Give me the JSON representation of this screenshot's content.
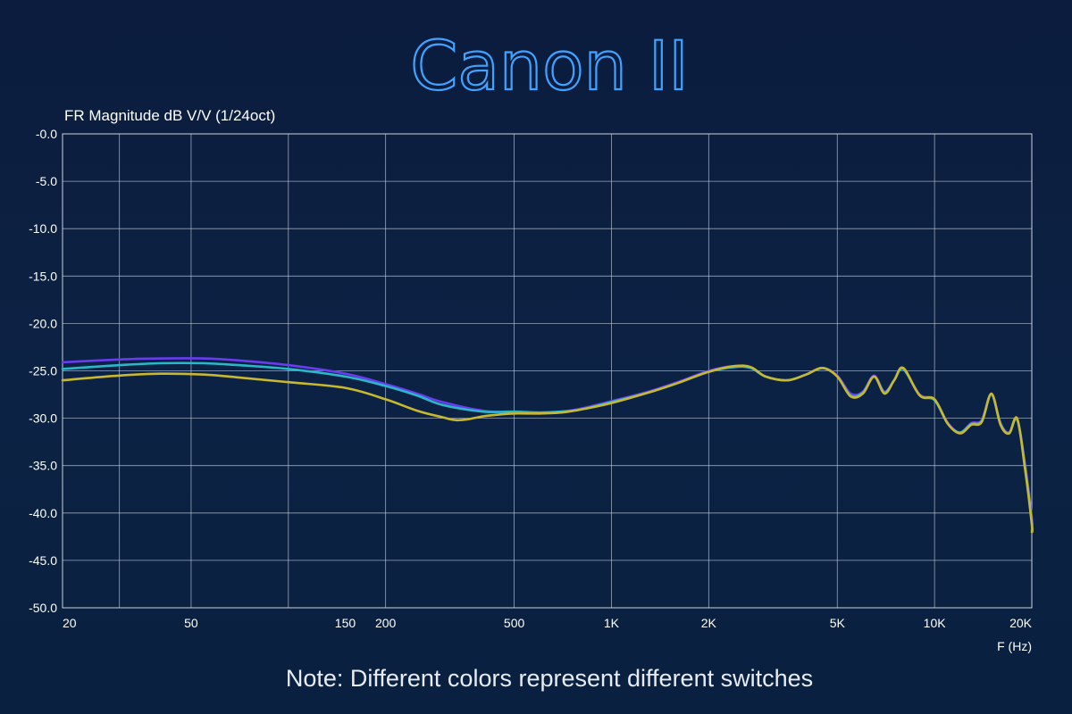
{
  "chart_data": {
    "type": "line",
    "title": "Canon II",
    "ylabel": "FR Magnitude dB V/V (1/24oct)",
    "xlabel": "F (Hz)",
    "note": "Note: Different colors represent different switches",
    "x_scale": "log",
    "xlim": [
      20,
      20000
    ],
    "ylim": [
      -50,
      0
    ],
    "grid": true,
    "y_ticks": [
      {
        "value": 0,
        "label": "-0.0"
      },
      {
        "value": -5,
        "label": "-5.0"
      },
      {
        "value": -10,
        "label": "-10.0"
      },
      {
        "value": -15,
        "label": "-15.0"
      },
      {
        "value": -20,
        "label": "-20.0"
      },
      {
        "value": -25,
        "label": "-25.0"
      },
      {
        "value": -30,
        "label": "-30.0"
      },
      {
        "value": -35,
        "label": "-35.0"
      },
      {
        "value": -40,
        "label": "-40.0"
      },
      {
        "value": -45,
        "label": "-45.0"
      },
      {
        "value": -50,
        "label": "-50.0"
      }
    ],
    "x_ticks": [
      {
        "value": 20,
        "label": "20"
      },
      {
        "value": 50,
        "label": "50"
      },
      {
        "value": 150,
        "label": "150"
      },
      {
        "value": 200,
        "label": "200"
      },
      {
        "value": 500,
        "label": "500"
      },
      {
        "value": 1000,
        "label": "1K"
      },
      {
        "value": 2000,
        "label": "2K"
      },
      {
        "value": 5000,
        "label": "5K"
      },
      {
        "value": 10000,
        "label": "10K"
      },
      {
        "value": 20000,
        "label": "20K"
      }
    ],
    "x_grid": [
      20,
      30,
      50,
      100,
      200,
      500,
      1000,
      2000,
      5000,
      10000,
      20000
    ],
    "series": [
      {
        "color": "#6a3cf0",
        "points": [
          [
            20,
            -24.1
          ],
          [
            30,
            -23.8
          ],
          [
            40,
            -23.7
          ],
          [
            55,
            -23.7
          ],
          [
            70,
            -23.9
          ],
          [
            100,
            -24.4
          ],
          [
            150,
            -25.3
          ],
          [
            200,
            -26.4
          ],
          [
            250,
            -27.4
          ],
          [
            300,
            -28.3
          ],
          [
            400,
            -29.2
          ],
          [
            500,
            -29.4
          ],
          [
            600,
            -29.5
          ],
          [
            700,
            -29.3
          ],
          [
            800,
            -29.0
          ],
          [
            1000,
            -28.2
          ],
          [
            1300,
            -27.2
          ],
          [
            1600,
            -26.2
          ],
          [
            2000,
            -25.0
          ],
          [
            2400,
            -24.5
          ],
          [
            2700,
            -24.7
          ],
          [
            3000,
            -25.6
          ],
          [
            3500,
            -26.0
          ],
          [
            4000,
            -25.4
          ],
          [
            4500,
            -24.7
          ],
          [
            5000,
            -25.5
          ],
          [
            5500,
            -27.4
          ],
          [
            6000,
            -27.2
          ],
          [
            6500,
            -25.5
          ],
          [
            7000,
            -27.2
          ],
          [
            7500,
            -26.0
          ],
          [
            8000,
            -24.8
          ],
          [
            9000,
            -27.5
          ],
          [
            10000,
            -28.0
          ],
          [
            11000,
            -30.5
          ],
          [
            12000,
            -31.5
          ],
          [
            13000,
            -30.5
          ],
          [
            14000,
            -30.2
          ],
          [
            15000,
            -27.4
          ],
          [
            16000,
            -30.5
          ],
          [
            17000,
            -31.5
          ],
          [
            18000,
            -30.1
          ],
          [
            19000,
            -34.5
          ],
          [
            20000,
            -40.5
          ],
          [
            21000,
            -41.5
          ]
        ]
      },
      {
        "color": "#29b8c9",
        "points": [
          [
            20,
            -24.8
          ],
          [
            30,
            -24.4
          ],
          [
            40,
            -24.2
          ],
          [
            55,
            -24.2
          ],
          [
            70,
            -24.4
          ],
          [
            100,
            -24.8
          ],
          [
            150,
            -25.6
          ],
          [
            200,
            -26.6
          ],
          [
            250,
            -27.6
          ],
          [
            300,
            -28.6
          ],
          [
            400,
            -29.3
          ],
          [
            500,
            -29.3
          ],
          [
            600,
            -29.4
          ],
          [
            700,
            -29.3
          ],
          [
            800,
            -29.1
          ],
          [
            1000,
            -28.3
          ],
          [
            1300,
            -27.3
          ],
          [
            1600,
            -26.3
          ],
          [
            2000,
            -25.1
          ],
          [
            2400,
            -24.6
          ],
          [
            2700,
            -24.7
          ],
          [
            3000,
            -25.6
          ],
          [
            3500,
            -26.0
          ],
          [
            4000,
            -25.4
          ],
          [
            4500,
            -24.7
          ],
          [
            5000,
            -25.6
          ],
          [
            5500,
            -27.6
          ],
          [
            6000,
            -27.3
          ],
          [
            6500,
            -25.6
          ],
          [
            7000,
            -27.3
          ],
          [
            7500,
            -26.0
          ],
          [
            8000,
            -24.8
          ],
          [
            9000,
            -27.6
          ],
          [
            10000,
            -28.1
          ],
          [
            11000,
            -30.6
          ],
          [
            12000,
            -31.5
          ],
          [
            13000,
            -30.6
          ],
          [
            14000,
            -30.3
          ],
          [
            15000,
            -27.5
          ],
          [
            16000,
            -30.6
          ],
          [
            17000,
            -31.6
          ],
          [
            18000,
            -30.1
          ],
          [
            19000,
            -34.8
          ],
          [
            20000,
            -41.0
          ],
          [
            21000,
            -41.8
          ]
        ]
      },
      {
        "color": "#c8b830",
        "points": [
          [
            20,
            -26.0
          ],
          [
            30,
            -25.5
          ],
          [
            40,
            -25.3
          ],
          [
            55,
            -25.4
          ],
          [
            70,
            -25.7
          ],
          [
            100,
            -26.2
          ],
          [
            150,
            -26.8
          ],
          [
            200,
            -28.0
          ],
          [
            250,
            -29.2
          ],
          [
            300,
            -29.9
          ],
          [
            330,
            -30.2
          ],
          [
            360,
            -30.1
          ],
          [
            400,
            -29.8
          ],
          [
            450,
            -29.6
          ],
          [
            500,
            -29.5
          ],
          [
            600,
            -29.5
          ],
          [
            700,
            -29.4
          ],
          [
            800,
            -29.1
          ],
          [
            1000,
            -28.4
          ],
          [
            1300,
            -27.3
          ],
          [
            1600,
            -26.3
          ],
          [
            2000,
            -25.1
          ],
          [
            2400,
            -24.5
          ],
          [
            2700,
            -24.6
          ],
          [
            3000,
            -25.6
          ],
          [
            3500,
            -26.0
          ],
          [
            4000,
            -25.4
          ],
          [
            4500,
            -24.7
          ],
          [
            5000,
            -25.6
          ],
          [
            5500,
            -27.7
          ],
          [
            6000,
            -27.4
          ],
          [
            6500,
            -25.6
          ],
          [
            7000,
            -27.4
          ],
          [
            7500,
            -26.0
          ],
          [
            8000,
            -24.7
          ],
          [
            9000,
            -27.6
          ],
          [
            10000,
            -28.0
          ],
          [
            11000,
            -30.6
          ],
          [
            12000,
            -31.6
          ],
          [
            13000,
            -30.7
          ],
          [
            14000,
            -30.4
          ],
          [
            15000,
            -27.4
          ],
          [
            16000,
            -30.7
          ],
          [
            17000,
            -31.6
          ],
          [
            18000,
            -30.0
          ],
          [
            19000,
            -35.0
          ],
          [
            20000,
            -41.2
          ],
          [
            21000,
            -42.0
          ]
        ]
      }
    ]
  }
}
